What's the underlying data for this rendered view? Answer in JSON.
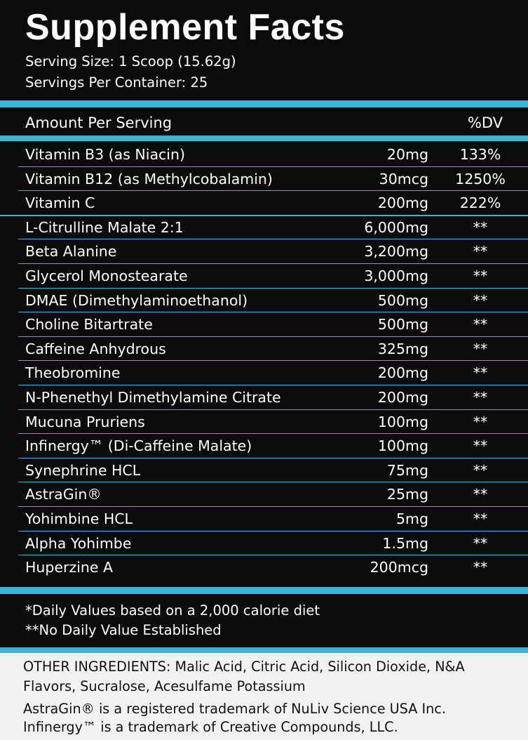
{
  "title": "Supplement Facts",
  "serving_size": "Serving Size: 1 Scoop (15.62g)",
  "servings_per_container": "Servings Per Container: 25",
  "header": {
    "amount_label": "Amount Per Serving",
    "dv_label": "%DV"
  },
  "vitamins": [
    {
      "name": "Vitamin B3 (as Niacin)",
      "amount": "20mg",
      "dv": "133%"
    },
    {
      "name": "Vitamin B12 (as Methylcobalamin)",
      "amount": "30mcg",
      "dv": "1250%"
    },
    {
      "name": "Vitamin C",
      "amount": "200mg",
      "dv": "222%"
    }
  ],
  "ingredients": [
    {
      "name": "L-Citrulline Malate 2:1",
      "amount": "6,000mg",
      "dv": "**"
    },
    {
      "name": "Beta Alanine",
      "amount": "3,200mg",
      "dv": "**"
    },
    {
      "name": "Glycerol Monostearate",
      "amount": "3,000mg",
      "dv": "**"
    },
    {
      "name": "DMAE (Dimethylaminoethanol)",
      "amount": "500mg",
      "dv": "**"
    },
    {
      "name": "Choline Bitartrate",
      "amount": "500mg",
      "dv": "**"
    },
    {
      "name": "Caffeine Anhydrous",
      "amount": "325mg",
      "dv": "**"
    },
    {
      "name": "Theobromine",
      "amount": "200mg",
      "dv": "**"
    },
    {
      "name": "N-Phenethyl Dimethylamine Citrate",
      "amount": "200mg",
      "dv": "**"
    },
    {
      "name": "Mucuna Pruriens",
      "amount": "100mg",
      "dv": "**"
    },
    {
      "name": "Infinergy™ (Di-Caffeine Malate)",
      "amount": "100mg",
      "dv": "**"
    },
    {
      "name": "Synephrine HCL",
      "amount": "75mg",
      "dv": "**"
    },
    {
      "name": "AstraGin®",
      "amount": "25mg",
      "dv": "**"
    },
    {
      "name": "Yohimbine HCL",
      "amount": "5mg",
      "dv": "**"
    },
    {
      "name": "Alpha Yohimbe",
      "amount": "1.5mg",
      "dv": "**"
    },
    {
      "name": "Huperzine A",
      "amount": "200mcg",
      "dv": "**"
    }
  ],
  "footnotes": {
    "daily_values": "*Daily Values based on a 2,000 calorie diet",
    "no_dv": "**No Daily Value Established"
  },
  "other_ingredients": "OTHER INGREDIENTS: Malic Acid, Citric Acid, Silicon Dioxide, N&A Flavors, Sucralose, Acesulfame Potassium",
  "trademarks": [
    "AstraGin® is a registered trademark of NuLiv Science USA Inc.",
    "Infinergy™ is a trademark of Creative Compounds, LLC."
  ],
  "colors": {
    "accent": "#3cb4d6",
    "background": "#0b0b0b",
    "text": "#ffffff",
    "footer_bg": "#f2f2f2"
  }
}
